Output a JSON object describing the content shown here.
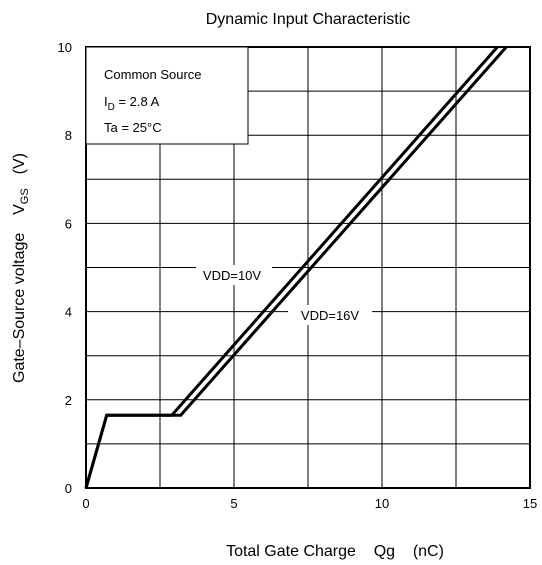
{
  "chart_data": {
    "type": "line",
    "title": "Dynamic Input Characteristic",
    "xlabel": "Total Gate Charge    Qg    (nC)",
    "ylabel": {
      "main": "Gate–Source voltage    V",
      "sub": "GS",
      "unit": "(V)"
    },
    "xlim": [
      0,
      15
    ],
    "ylim": [
      0,
      10
    ],
    "xticks": [
      0,
      5,
      10,
      15
    ],
    "yticks": [
      0,
      2,
      4,
      6,
      8,
      10
    ],
    "grid": true,
    "conditions": [
      {
        "pre": "Common Source",
        "sub": "",
        "post": ""
      },
      {
        "pre": "I",
        "sub": "D",
        "post": " = 2.8 A"
      },
      {
        "pre": "Ta = 25°C",
        "sub": "",
        "post": ""
      }
    ],
    "series": [
      {
        "name": "VDD=10V",
        "color": "#000000",
        "x": [
          0,
          0.7,
          2.9,
          13.9
        ],
        "y": [
          0,
          1.65,
          1.65,
          10
        ]
      },
      {
        "name": "VDD=16V",
        "color": "#000000",
        "x": [
          0,
          0.7,
          3.2,
          14.2
        ],
        "y": [
          0,
          1.65,
          1.65,
          10
        ]
      }
    ]
  }
}
